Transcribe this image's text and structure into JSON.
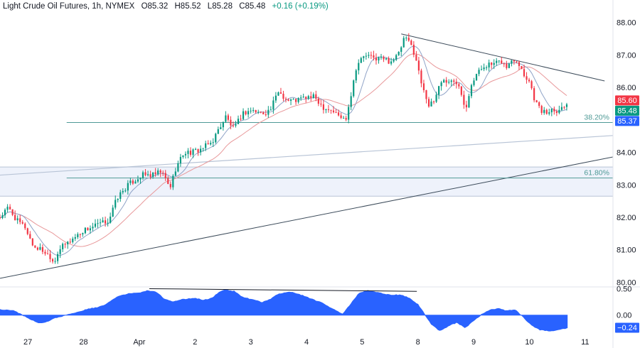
{
  "header": {
    "symbol": "Light Crude Oil Futures, 1h, NYMEX",
    "open": "O85.32",
    "high": "H85.52",
    "low": "L85.28",
    "close": "C85.48",
    "change": "+0.16 (+0.19%)"
  },
  "colors": {
    "up": "#089981",
    "down": "#f23645",
    "fast_ma": "#8fa3c7",
    "slow_ma": "#e8989a",
    "fib": "#4f9a96",
    "trendline": "#3c4b5a",
    "channel_line": "#b8c4d6",
    "band_fill": "#eef2fb",
    "oscillator": "#2962ff"
  },
  "chart_data": [
    {
      "type": "candlestick",
      "title": "Light Crude Oil Futures, 1h, NYMEX",
      "ylim": [
        79.9,
        88.3
      ],
      "y_ticks": [
        "88.00",
        "87.00",
        "86.00",
        "85.00",
        "84.00",
        "83.00",
        "82.00",
        "81.00",
        "80.00"
      ],
      "x_ticks": [
        {
          "label": "27",
          "x": 0.5
        },
        {
          "label": "28",
          "x": 1.5
        },
        {
          "label": "Apr",
          "x": 2.5
        },
        {
          "label": "2",
          "x": 3.5
        },
        {
          "label": "3",
          "x": 4.5
        },
        {
          "label": "4",
          "x": 5.5
        },
        {
          "label": "5",
          "x": 6.5
        },
        {
          "label": "8",
          "x": 7.5
        },
        {
          "label": "9",
          "x": 8.5
        },
        {
          "label": "10",
          "x": 9.5
        },
        {
          "label": "11",
          "x": 10.5
        }
      ],
      "xlim": [
        0,
        11
      ],
      "anchors": [
        [
          0.0,
          82.0
        ],
        [
          0.15,
          82.3
        ],
        [
          0.3,
          81.9
        ],
        [
          0.45,
          81.7
        ],
        [
          0.6,
          81.1
        ],
        [
          0.75,
          81.0
        ],
        [
          0.9,
          80.8
        ],
        [
          0.97,
          80.6
        ],
        [
          1.05,
          81.0
        ],
        [
          1.2,
          81.2
        ],
        [
          1.35,
          81.4
        ],
        [
          1.5,
          81.6
        ],
        [
          1.65,
          81.7
        ],
        [
          1.8,
          81.8
        ],
        [
          1.95,
          81.9
        ],
        [
          2.1,
          82.6
        ],
        [
          2.3,
          83.0
        ],
        [
          2.55,
          83.3
        ],
        [
          2.75,
          83.3
        ],
        [
          2.9,
          83.4
        ],
        [
          3.05,
          82.9
        ],
        [
          3.15,
          83.5
        ],
        [
          3.3,
          84.0
        ],
        [
          3.45,
          84.0
        ],
        [
          3.6,
          84.1
        ],
        [
          3.8,
          84.3
        ],
        [
          3.95,
          84.8
        ],
        [
          4.05,
          85.1
        ],
        [
          4.2,
          84.7
        ],
        [
          4.35,
          85.2
        ],
        [
          4.5,
          85.3
        ],
        [
          4.7,
          85.2
        ],
        [
          4.85,
          85.3
        ],
        [
          5.0,
          85.9
        ],
        [
          5.15,
          85.6
        ],
        [
          5.3,
          85.6
        ],
        [
          5.5,
          85.7
        ],
        [
          5.65,
          85.7
        ],
        [
          5.8,
          85.4
        ],
        [
          5.95,
          85.3
        ],
        [
          6.1,
          85.1
        ],
        [
          6.2,
          85.0
        ],
        [
          6.3,
          85.8
        ],
        [
          6.4,
          86.7
        ],
        [
          6.55,
          87.0
        ],
        [
          6.7,
          86.9
        ],
        [
          6.85,
          86.9
        ],
        [
          7.0,
          86.8
        ],
        [
          7.15,
          87.0
        ],
        [
          7.25,
          87.5
        ],
        [
          7.35,
          87.4
        ],
        [
          7.45,
          87.0
        ],
        [
          7.55,
          86.2
        ],
        [
          7.62,
          85.9
        ],
        [
          7.7,
          85.4
        ],
        [
          7.8,
          85.6
        ],
        [
          7.9,
          86.2
        ],
        [
          8.05,
          86.2
        ],
        [
          8.25,
          86.1
        ],
        [
          8.35,
          85.3
        ],
        [
          8.45,
          86.1
        ],
        [
          8.55,
          86.4
        ],
        [
          8.7,
          86.7
        ],
        [
          8.85,
          86.7
        ],
        [
          9.0,
          86.8
        ],
        [
          9.1,
          86.6
        ],
        [
          9.2,
          86.9
        ],
        [
          9.3,
          86.8
        ],
        [
          9.4,
          86.4
        ],
        [
          9.5,
          86.2
        ],
        [
          9.6,
          85.6
        ],
        [
          9.7,
          85.3
        ],
        [
          9.8,
          85.2
        ],
        [
          9.9,
          85.35
        ],
        [
          10.0,
          85.3
        ],
        [
          10.1,
          85.4
        ],
        [
          10.18,
          85.48
        ]
      ],
      "last_price": "85.48",
      "price_labels": [
        {
          "text": "85.60",
          "value": 85.6,
          "color": "#f23645"
        },
        {
          "text": "85.48",
          "value": 85.48,
          "color": "#089981"
        },
        {
          "text": "85.37",
          "value": 85.37,
          "color": "#2962ff"
        }
      ],
      "fib_levels": [
        {
          "label": "38.20%",
          "value": 84.92,
          "x_start": 2.0
        },
        {
          "label": "61.80%",
          "value": 83.21,
          "x_start": 2.0
        }
      ],
      "horizontal_band": {
        "upper": 83.55,
        "lower": 82.65
      },
      "lines": [
        {
          "name": "rising trendline",
          "from": [
            0.0,
            80.12
          ],
          "to": [
            11.0,
            83.86
          ],
          "role": "trendline"
        },
        {
          "name": "upper channel line",
          "from": [
            0.0,
            83.3
          ],
          "to": [
            11.0,
            84.52
          ],
          "role": "channel"
        },
        {
          "name": "descending trendline",
          "from": [
            7.2,
            87.65
          ],
          "to": [
            10.85,
            86.2
          ],
          "role": "trendline"
        }
      ]
    },
    {
      "type": "area",
      "title": "",
      "ylim": [
        -0.34,
        0.52
      ],
      "y_ticks": [
        "0.50",
        "0.00"
      ],
      "last_value": "−0.24",
      "anchors": [
        [
          0.0,
          0.1
        ],
        [
          0.25,
          0.08
        ],
        [
          0.5,
          -0.05
        ],
        [
          0.7,
          -0.15
        ],
        [
          0.85,
          -0.12
        ],
        [
          1.0,
          -0.05
        ],
        [
          1.2,
          0.0
        ],
        [
          1.4,
          0.06
        ],
        [
          1.6,
          0.12
        ],
        [
          1.75,
          0.14
        ],
        [
          1.9,
          0.2
        ],
        [
          2.1,
          0.35
        ],
        [
          2.3,
          0.4
        ],
        [
          2.5,
          0.42
        ],
        [
          2.65,
          0.46
        ],
        [
          2.8,
          0.44
        ],
        [
          2.95,
          0.3
        ],
        [
          3.1,
          0.25
        ],
        [
          3.3,
          0.3
        ],
        [
          3.5,
          0.32
        ],
        [
          3.65,
          0.28
        ],
        [
          3.8,
          0.32
        ],
        [
          3.95,
          0.44
        ],
        [
          4.05,
          0.48
        ],
        [
          4.2,
          0.45
        ],
        [
          4.35,
          0.34
        ],
        [
          4.5,
          0.3
        ],
        [
          4.7,
          0.24
        ],
        [
          4.85,
          0.3
        ],
        [
          5.0,
          0.4
        ],
        [
          5.2,
          0.44
        ],
        [
          5.4,
          0.38
        ],
        [
          5.6,
          0.3
        ],
        [
          5.8,
          0.22
        ],
        [
          6.0,
          0.1
        ],
        [
          6.15,
          0.02
        ],
        [
          6.3,
          0.22
        ],
        [
          6.45,
          0.42
        ],
        [
          6.6,
          0.46
        ],
        [
          6.8,
          0.42
        ],
        [
          7.0,
          0.38
        ],
        [
          7.2,
          0.38
        ],
        [
          7.35,
          0.32
        ],
        [
          7.5,
          0.2
        ],
        [
          7.62,
          0.02
        ],
        [
          7.75,
          -0.18
        ],
        [
          7.9,
          -0.3
        ],
        [
          8.05,
          -0.2
        ],
        [
          8.2,
          -0.14
        ],
        [
          8.35,
          -0.24
        ],
        [
          8.5,
          -0.1
        ],
        [
          8.65,
          0.02
        ],
        [
          8.8,
          0.1
        ],
        [
          8.95,
          0.12
        ],
        [
          9.1,
          0.08
        ],
        [
          9.25,
          0.1
        ],
        [
          9.4,
          -0.05
        ],
        [
          9.55,
          -0.2
        ],
        [
          9.7,
          -0.28
        ],
        [
          9.85,
          -0.3
        ],
        [
          10.0,
          -0.28
        ],
        [
          10.18,
          -0.24
        ]
      ],
      "divergence_line": {
        "from": [
          2.68,
          0.5
        ],
        "to": [
          7.48,
          0.45
        ]
      }
    }
  ]
}
